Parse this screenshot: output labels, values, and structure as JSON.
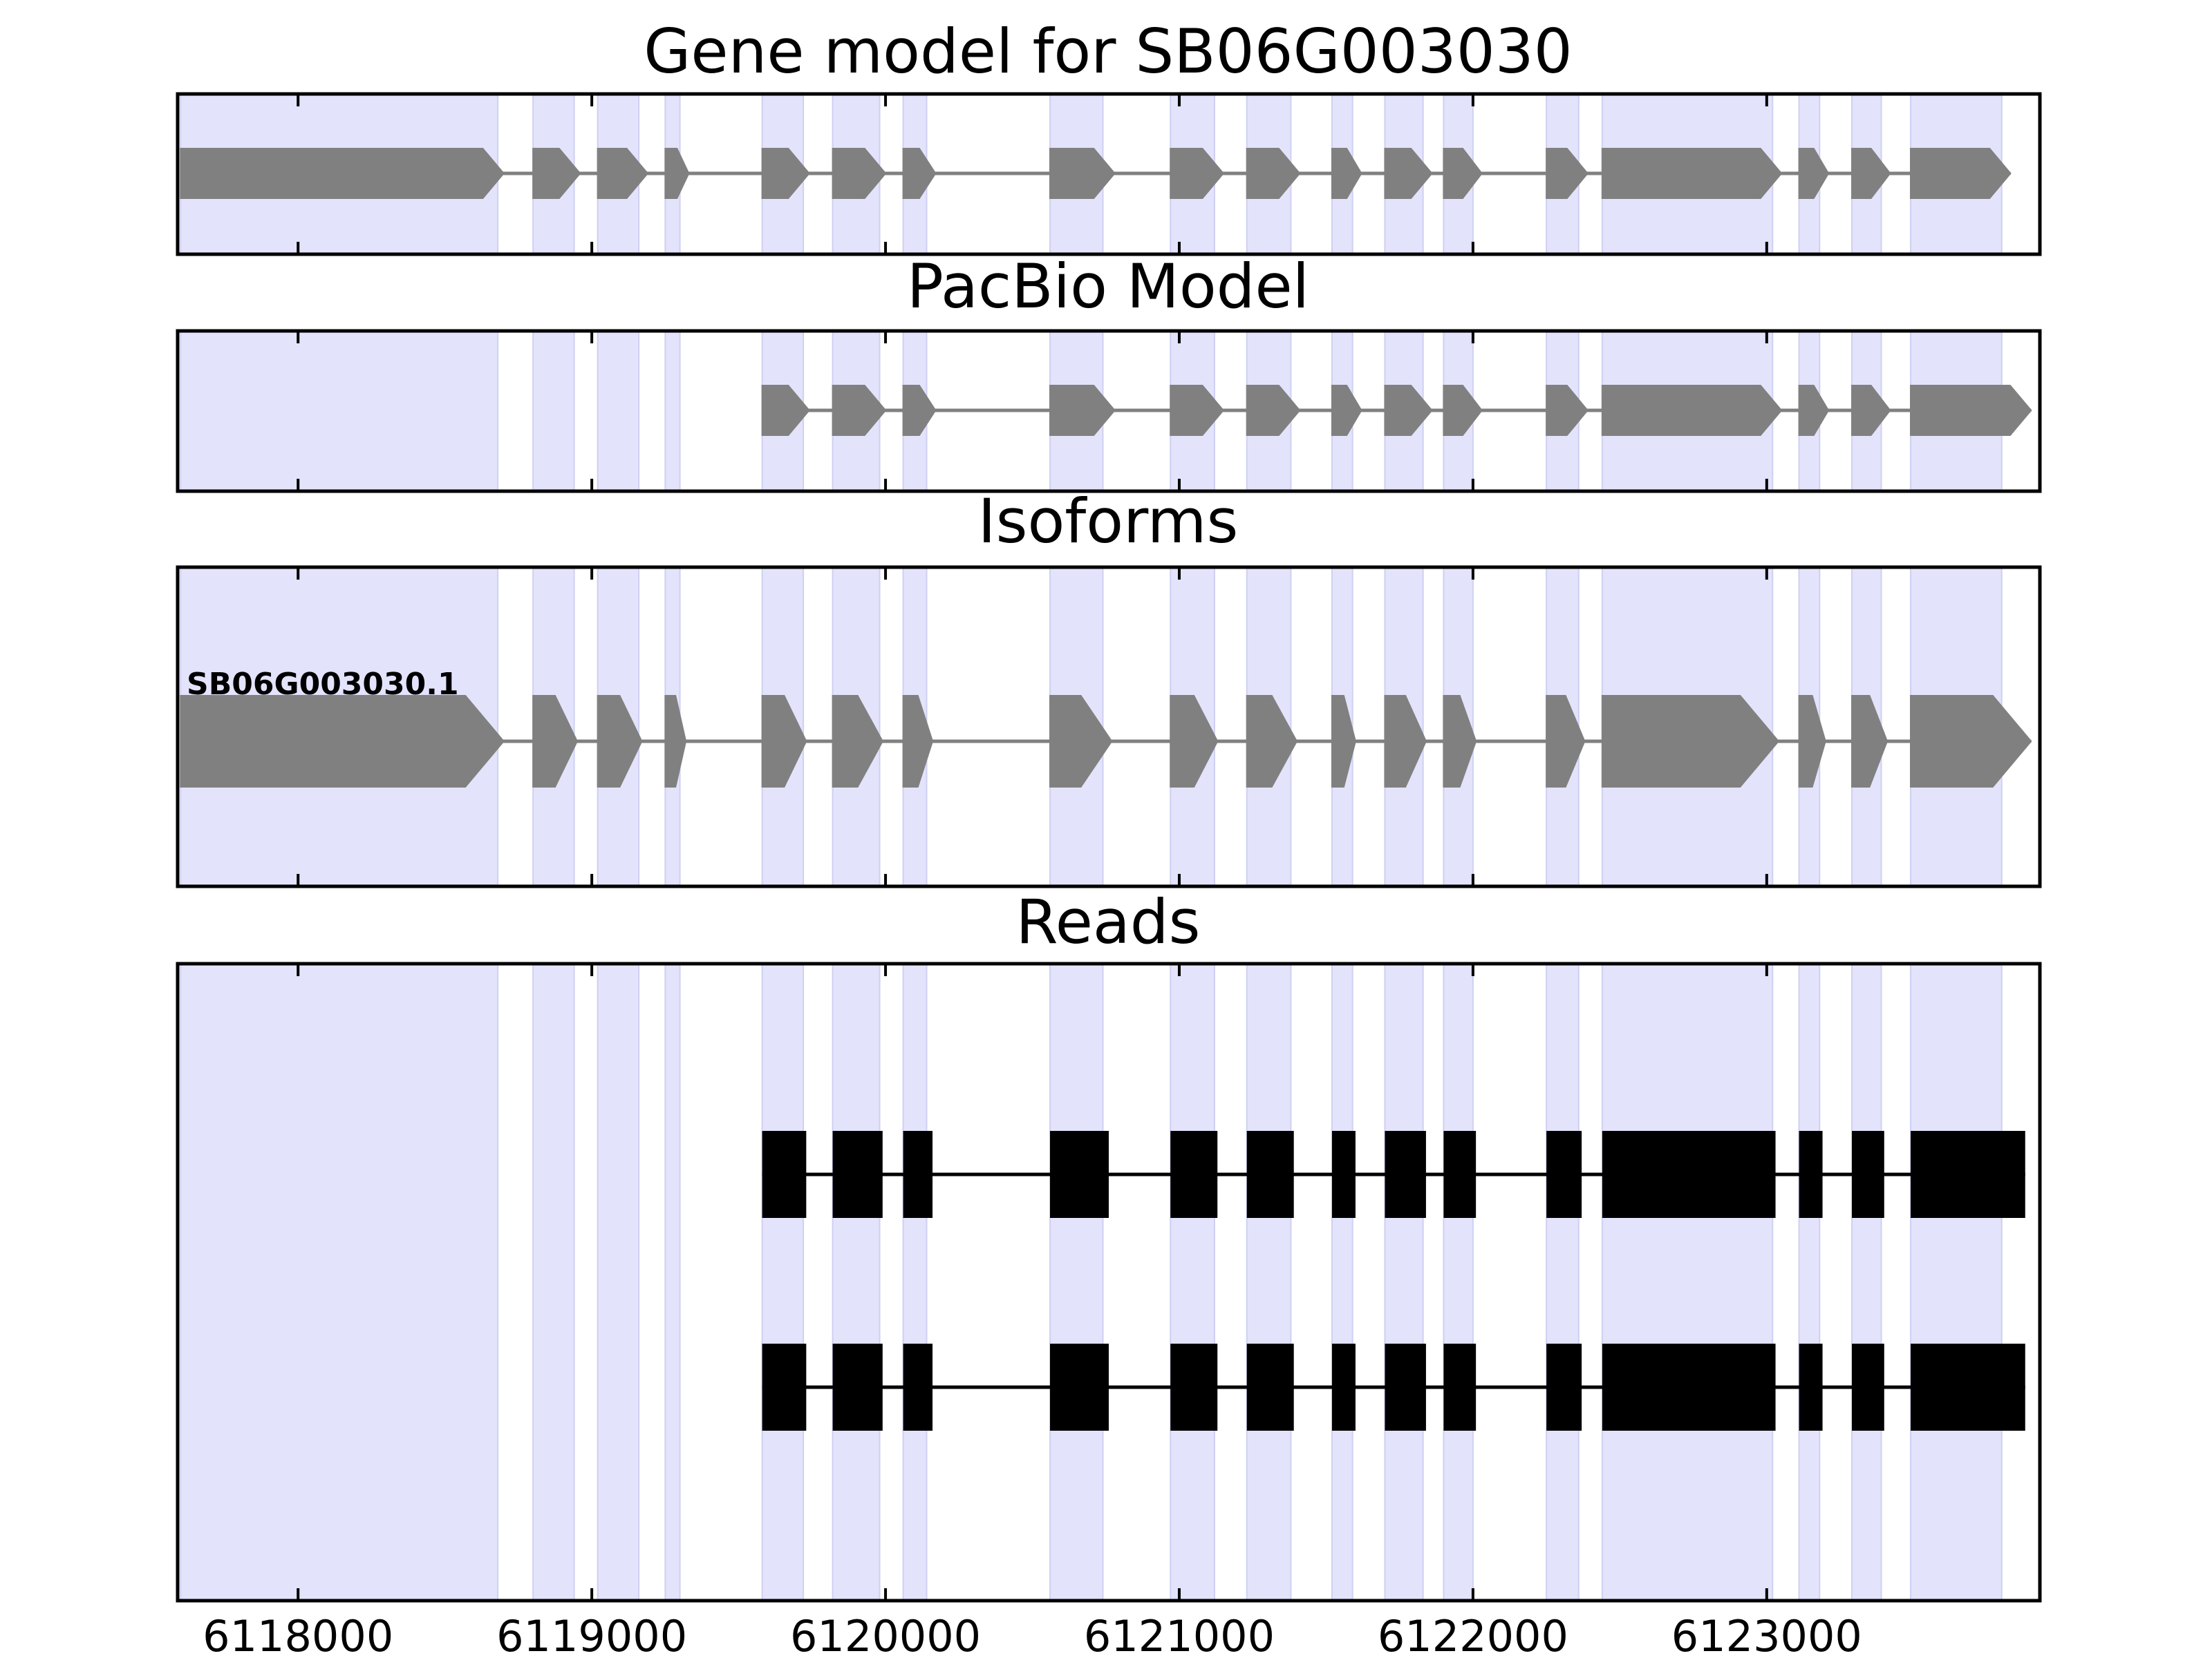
{
  "chart_data": {
    "type": "gene-structure",
    "xlim": [
      6117590,
      6123930
    ],
    "x_ticks": [
      6118000,
      6119000,
      6120000,
      6121000,
      6122000,
      6123000
    ],
    "x_tick_labels": [
      "6118000",
      "6119000",
      "6120000",
      "6121000",
      "6122000",
      "6123000"
    ],
    "highlight_color": "#e3e3fb",
    "feature_color": "#808080",
    "read_color": "#000000",
    "highlight_regions": [
      [
        6117600,
        6118680
      ],
      [
        6118800,
        6118940
      ],
      [
        6119020,
        6119160
      ],
      [
        6119250,
        6119300
      ],
      [
        6119580,
        6119720
      ],
      [
        6119820,
        6119980
      ],
      [
        6120060,
        6120140
      ],
      [
        6120560,
        6120740
      ],
      [
        6120970,
        6121120
      ],
      [
        6121230,
        6121380
      ],
      [
        6121520,
        6121590
      ],
      [
        6121700,
        6121830
      ],
      [
        6121900,
        6122000
      ],
      [
        6122250,
        6122360
      ],
      [
        6122440,
        6123020
      ],
      [
        6123110,
        6123180
      ],
      [
        6123290,
        6123390
      ],
      [
        6123490,
        6123800
      ]
    ],
    "panels": [
      {
        "title": "Gene model for SB06G003030",
        "tracks": [
          {
            "label": "",
            "exons": [
              [
                6117600,
                6118700
              ],
              [
                6118800,
                6118960
              ],
              [
                6119020,
                6119190
              ],
              [
                6119250,
                6119330
              ],
              [
                6119580,
                6119740
              ],
              [
                6119820,
                6120000
              ],
              [
                6120060,
                6120170
              ],
              [
                6120560,
                6120780
              ],
              [
                6120970,
                6121150
              ],
              [
                6121230,
                6121410
              ],
              [
                6121520,
                6121620
              ],
              [
                6121700,
                6121860
              ],
              [
                6121900,
                6122030
              ],
              [
                6122250,
                6122390
              ],
              [
                6122440,
                6123050
              ],
              [
                6123110,
                6123210
              ],
              [
                6123290,
                6123420
              ],
              [
                6123490,
                6123830
              ]
            ]
          }
        ]
      },
      {
        "title": "PacBio Model",
        "tracks": [
          {
            "label": "",
            "exons": [
              [
                6119580,
                6119740
              ],
              [
                6119820,
                6120000
              ],
              [
                6120060,
                6120170
              ],
              [
                6120560,
                6120780
              ],
              [
                6120970,
                6121150
              ],
              [
                6121230,
                6121410
              ],
              [
                6121520,
                6121620
              ],
              [
                6121700,
                6121860
              ],
              [
                6121900,
                6122030
              ],
              [
                6122250,
                6122390
              ],
              [
                6122440,
                6123050
              ],
              [
                6123110,
                6123210
              ],
              [
                6123290,
                6123420
              ],
              [
                6123490,
                6123900
              ]
            ]
          }
        ]
      },
      {
        "title": "Isoforms",
        "tracks": [
          {
            "label": "SB06G003030.1",
            "exons": [
              [
                6117600,
                6118700
              ],
              [
                6118800,
                6118950
              ],
              [
                6119020,
                6119170
              ],
              [
                6119250,
                6119320
              ],
              [
                6119580,
                6119730
              ],
              [
                6119820,
                6119990
              ],
              [
                6120060,
                6120160
              ],
              [
                6120560,
                6120770
              ],
              [
                6120970,
                6121130
              ],
              [
                6121230,
                6121400
              ],
              [
                6121520,
                6121600
              ],
              [
                6121700,
                6121840
              ],
              [
                6121900,
                6122010
              ],
              [
                6122250,
                6122380
              ],
              [
                6122440,
                6123040
              ],
              [
                6123110,
                6123200
              ],
              [
                6123290,
                6123410
              ],
              [
                6123490,
                6123900
              ]
            ]
          }
        ]
      },
      {
        "title": "Reads",
        "tracks": [
          {
            "label": "",
            "exons": [
              [
                6119580,
                6119730
              ],
              [
                6119820,
                6119990
              ],
              [
                6120060,
                6120160
              ],
              [
                6120560,
                6120760
              ],
              [
                6120970,
                6121130
              ],
              [
                6121230,
                6121390
              ],
              [
                6121520,
                6121600
              ],
              [
                6121700,
                6121840
              ],
              [
                6121900,
                6122010
              ],
              [
                6122250,
                6122370
              ],
              [
                6122440,
                6123030
              ],
              [
                6123110,
                6123190
              ],
              [
                6123290,
                6123400
              ],
              [
                6123490,
                6123880
              ]
            ]
          },
          {
            "label": "",
            "exons": [
              [
                6119580,
                6119730
              ],
              [
                6119820,
                6119990
              ],
              [
                6120060,
                6120160
              ],
              [
                6120560,
                6120760
              ],
              [
                6120970,
                6121130
              ],
              [
                6121230,
                6121390
              ],
              [
                6121520,
                6121600
              ],
              [
                6121700,
                6121840
              ],
              [
                6121900,
                6122010
              ],
              [
                6122250,
                6122370
              ],
              [
                6122440,
                6123030
              ],
              [
                6123110,
                6123190
              ],
              [
                6123290,
                6123400
              ],
              [
                6123490,
                6123880
              ]
            ]
          }
        ]
      }
    ]
  }
}
